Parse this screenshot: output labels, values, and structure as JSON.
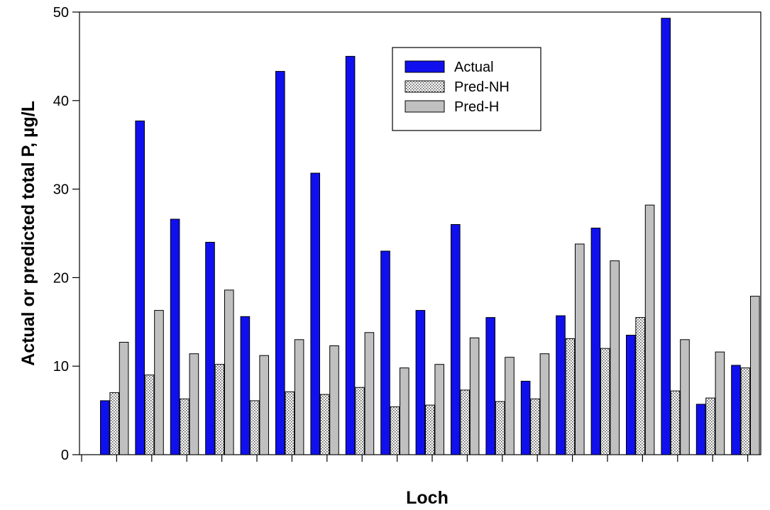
{
  "chart_data": {
    "type": "bar",
    "xlabel": "Loch",
    "ylabel": "Actual or predicted total P, µg/L",
    "ylim": [
      0,
      50
    ],
    "yticks": [
      0,
      10,
      20,
      30,
      40,
      50
    ],
    "legend_position": "top-center",
    "grid": false,
    "series": [
      {
        "name": "Actual",
        "color": "#1010ee",
        "pattern": "solid",
        "values": [
          6.1,
          37.7,
          26.6,
          24.0,
          15.6,
          43.3,
          31.8,
          45.0,
          23.0,
          16.3,
          26.0,
          15.5,
          8.3,
          15.7,
          25.6,
          13.5,
          49.3,
          5.7,
          10.1
        ]
      },
      {
        "name": "Pred-NH",
        "color": "#d9d9d9",
        "pattern": "dotted",
        "values": [
          7.0,
          9.0,
          6.3,
          10.2,
          6.1,
          7.1,
          6.8,
          7.6,
          5.4,
          5.6,
          7.3,
          6.0,
          6.3,
          13.1,
          12.0,
          15.5,
          7.2,
          6.4,
          9.8
        ]
      },
      {
        "name": "Pred-H",
        "color": "#c0c0c0",
        "pattern": "solid",
        "values": [
          12.7,
          16.3,
          11.4,
          18.6,
          11.2,
          13.0,
          12.3,
          13.8,
          9.8,
          10.2,
          13.2,
          11.0,
          11.4,
          23.8,
          21.9,
          28.2,
          13.0,
          11.6,
          17.9
        ]
      }
    ]
  }
}
